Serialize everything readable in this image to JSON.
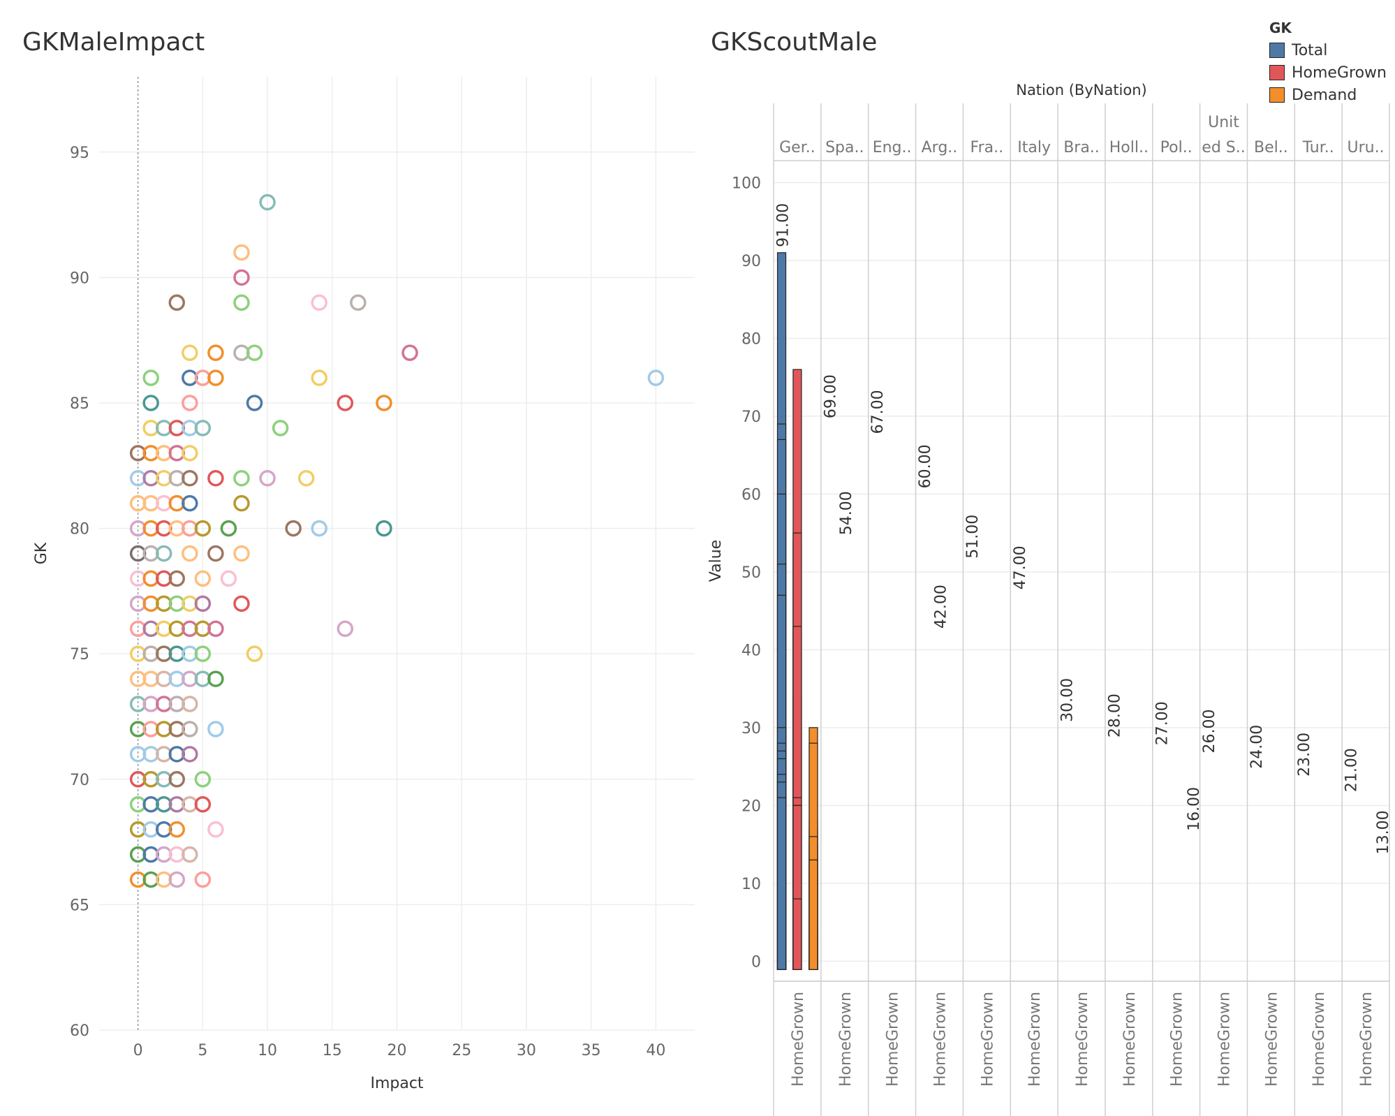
{
  "chart_data": [
    {
      "type": "scatter",
      "title": "GKMaleImpact",
      "xlabel": "Impact",
      "ylabel": "GK",
      "xlim": [
        -3,
        43
      ],
      "ylim": [
        60,
        98
      ],
      "x_ticks": [
        "0",
        "5",
        "10",
        "15",
        "20",
        "25",
        "30",
        "35",
        "40"
      ],
      "y_ticks": [
        "60",
        "65",
        "70",
        "75",
        "80",
        "85",
        "90",
        "95"
      ],
      "reference_line_x": 0,
      "marker": "hollow-circle",
      "palette": [
        "#4e79a7",
        "#a0cbe8",
        "#f28e2b",
        "#ffbe7d",
        "#59a14f",
        "#8cd17d",
        "#b6992d",
        "#f1ce63",
        "#499894",
        "#86bcb6",
        "#e15759",
        "#ff9d9a",
        "#79706e",
        "#bab0ac",
        "#d37295",
        "#fabfd2",
        "#b07aa1",
        "#d4a6c8",
        "#9d7660",
        "#d7b5a6"
      ],
      "points": [
        {
          "x": 10,
          "y": 93,
          "c": 9
        },
        {
          "x": 8,
          "y": 91,
          "c": 3
        },
        {
          "x": 8,
          "y": 90,
          "c": 14
        },
        {
          "x": 3,
          "y": 89,
          "c": 18
        },
        {
          "x": 8,
          "y": 89,
          "c": 5
        },
        {
          "x": 14,
          "y": 89,
          "c": 15
        },
        {
          "x": 17,
          "y": 89,
          "c": 13
        },
        {
          "x": 4,
          "y": 87,
          "c": 7
        },
        {
          "x": 6,
          "y": 87,
          "c": 2
        },
        {
          "x": 8,
          "y": 87,
          "c": 13
        },
        {
          "x": 9,
          "y": 87,
          "c": 5
        },
        {
          "x": 21,
          "y": 87,
          "c": 14
        },
        {
          "x": 1,
          "y": 86,
          "c": 5
        },
        {
          "x": 4,
          "y": 86,
          "c": 0
        },
        {
          "x": 5,
          "y": 86,
          "c": 11
        },
        {
          "x": 6,
          "y": 86,
          "c": 2
        },
        {
          "x": 14,
          "y": 86,
          "c": 7
        },
        {
          "x": 40,
          "y": 86,
          "c": 1
        },
        {
          "x": 1,
          "y": 85,
          "c": 8
        },
        {
          "x": 4,
          "y": 85,
          "c": 11
        },
        {
          "x": 9,
          "y": 85,
          "c": 0
        },
        {
          "x": 16,
          "y": 85,
          "c": 10
        },
        {
          "x": 19,
          "y": 85,
          "c": 2
        },
        {
          "x": 1,
          "y": 84,
          "c": 7
        },
        {
          "x": 2,
          "y": 84,
          "c": 9
        },
        {
          "x": 3,
          "y": 84,
          "c": 10
        },
        {
          "x": 4,
          "y": 84,
          "c": 1
        },
        {
          "x": 5,
          "y": 84,
          "c": 9
        },
        {
          "x": 11,
          "y": 84,
          "c": 5
        },
        {
          "x": 0,
          "y": 83,
          "c": 18
        },
        {
          "x": 1,
          "y": 83,
          "c": 2
        },
        {
          "x": 2,
          "y": 83,
          "c": 3
        },
        {
          "x": 3,
          "y": 83,
          "c": 14
        },
        {
          "x": 4,
          "y": 83,
          "c": 7
        },
        {
          "x": 0,
          "y": 82,
          "c": 1
        },
        {
          "x": 1,
          "y": 82,
          "c": 16
        },
        {
          "x": 2,
          "y": 82,
          "c": 7
        },
        {
          "x": 3,
          "y": 82,
          "c": 13
        },
        {
          "x": 4,
          "y": 82,
          "c": 18
        },
        {
          "x": 6,
          "y": 82,
          "c": 10
        },
        {
          "x": 8,
          "y": 82,
          "c": 5
        },
        {
          "x": 10,
          "y": 82,
          "c": 17
        },
        {
          "x": 13,
          "y": 82,
          "c": 7
        },
        {
          "x": 0,
          "y": 81,
          "c": 3
        },
        {
          "x": 1,
          "y": 81,
          "c": 3
        },
        {
          "x": 2,
          "y": 81,
          "c": 15
        },
        {
          "x": 3,
          "y": 81,
          "c": 2
        },
        {
          "x": 4,
          "y": 81,
          "c": 0
        },
        {
          "x": 8,
          "y": 81,
          "c": 6
        },
        {
          "x": 0,
          "y": 80,
          "c": 17
        },
        {
          "x": 1,
          "y": 80,
          "c": 2
        },
        {
          "x": 2,
          "y": 80,
          "c": 10
        },
        {
          "x": 3,
          "y": 80,
          "c": 3
        },
        {
          "x": 4,
          "y": 80,
          "c": 11
        },
        {
          "x": 5,
          "y": 80,
          "c": 6
        },
        {
          "x": 7,
          "y": 80,
          "c": 4
        },
        {
          "x": 12,
          "y": 80,
          "c": 18
        },
        {
          "x": 14,
          "y": 80,
          "c": 1
        },
        {
          "x": 19,
          "y": 80,
          "c": 8
        },
        {
          "x": 0,
          "y": 79,
          "c": 12
        },
        {
          "x": 1,
          "y": 79,
          "c": 13
        },
        {
          "x": 2,
          "y": 79,
          "c": 9
        },
        {
          "x": 4,
          "y": 79,
          "c": 3
        },
        {
          "x": 6,
          "y": 79,
          "c": 18
        },
        {
          "x": 8,
          "y": 79,
          "c": 3
        },
        {
          "x": 0,
          "y": 78,
          "c": 15
        },
        {
          "x": 1,
          "y": 78,
          "c": 2
        },
        {
          "x": 2,
          "y": 78,
          "c": 10
        },
        {
          "x": 3,
          "y": 78,
          "c": 18
        },
        {
          "x": 5,
          "y": 78,
          "c": 3
        },
        {
          "x": 7,
          "y": 78,
          "c": 15
        },
        {
          "x": 0,
          "y": 77,
          "c": 17
        },
        {
          "x": 1,
          "y": 77,
          "c": 2
        },
        {
          "x": 2,
          "y": 77,
          "c": 6
        },
        {
          "x": 3,
          "y": 77,
          "c": 5
        },
        {
          "x": 4,
          "y": 77,
          "c": 7
        },
        {
          "x": 5,
          "y": 77,
          "c": 16
        },
        {
          "x": 8,
          "y": 77,
          "c": 10
        },
        {
          "x": 0,
          "y": 76,
          "c": 11
        },
        {
          "x": 1,
          "y": 76,
          "c": 16
        },
        {
          "x": 2,
          "y": 76,
          "c": 7
        },
        {
          "x": 3,
          "y": 76,
          "c": 6
        },
        {
          "x": 4,
          "y": 76,
          "c": 14
        },
        {
          "x": 5,
          "y": 76,
          "c": 6
        },
        {
          "x": 6,
          "y": 76,
          "c": 14
        },
        {
          "x": 16,
          "y": 76,
          "c": 17
        },
        {
          "x": 0,
          "y": 75,
          "c": 7
        },
        {
          "x": 1,
          "y": 75,
          "c": 13
        },
        {
          "x": 2,
          "y": 75,
          "c": 18
        },
        {
          "x": 3,
          "y": 75,
          "c": 8
        },
        {
          "x": 4,
          "y": 75,
          "c": 1
        },
        {
          "x": 5,
          "y": 75,
          "c": 5
        },
        {
          "x": 9,
          "y": 75,
          "c": 7
        },
        {
          "x": 0,
          "y": 74,
          "c": 3
        },
        {
          "x": 1,
          "y": 74,
          "c": 3
        },
        {
          "x": 2,
          "y": 74,
          "c": 19
        },
        {
          "x": 3,
          "y": 74,
          "c": 1
        },
        {
          "x": 4,
          "y": 74,
          "c": 17
        },
        {
          "x": 5,
          "y": 74,
          "c": 9
        },
        {
          "x": 6,
          "y": 74,
          "c": 4
        },
        {
          "x": 0,
          "y": 73,
          "c": 9
        },
        {
          "x": 1,
          "y": 73,
          "c": 17
        },
        {
          "x": 2,
          "y": 73,
          "c": 14
        },
        {
          "x": 3,
          "y": 73,
          "c": 13
        },
        {
          "x": 4,
          "y": 73,
          "c": 19
        },
        {
          "x": 0,
          "y": 72,
          "c": 4
        },
        {
          "x": 1,
          "y": 72,
          "c": 11
        },
        {
          "x": 2,
          "y": 72,
          "c": 6
        },
        {
          "x": 3,
          "y": 72,
          "c": 18
        },
        {
          "x": 4,
          "y": 72,
          "c": 13
        },
        {
          "x": 6,
          "y": 72,
          "c": 1
        },
        {
          "x": 0,
          "y": 71,
          "c": 1
        },
        {
          "x": 1,
          "y": 71,
          "c": 1
        },
        {
          "x": 2,
          "y": 71,
          "c": 19
        },
        {
          "x": 3,
          "y": 71,
          "c": 0
        },
        {
          "x": 4,
          "y": 71,
          "c": 16
        },
        {
          "x": 0,
          "y": 70,
          "c": 10
        },
        {
          "x": 1,
          "y": 70,
          "c": 6
        },
        {
          "x": 2,
          "y": 70,
          "c": 9
        },
        {
          "x": 3,
          "y": 70,
          "c": 18
        },
        {
          "x": 5,
          "y": 70,
          "c": 5
        },
        {
          "x": 0,
          "y": 69,
          "c": 5
        },
        {
          "x": 1,
          "y": 69,
          "c": 0
        },
        {
          "x": 2,
          "y": 69,
          "c": 8
        },
        {
          "x": 3,
          "y": 69,
          "c": 16
        },
        {
          "x": 4,
          "y": 69,
          "c": 19
        },
        {
          "x": 5,
          "y": 69,
          "c": 10
        },
        {
          "x": 0,
          "y": 68,
          "c": 6
        },
        {
          "x": 1,
          "y": 68,
          "c": 1
        },
        {
          "x": 2,
          "y": 68,
          "c": 0
        },
        {
          "x": 3,
          "y": 68,
          "c": 2
        },
        {
          "x": 6,
          "y": 68,
          "c": 15
        },
        {
          "x": 0,
          "y": 67,
          "c": 4
        },
        {
          "x": 1,
          "y": 67,
          "c": 0
        },
        {
          "x": 2,
          "y": 67,
          "c": 17
        },
        {
          "x": 3,
          "y": 67,
          "c": 15
        },
        {
          "x": 4,
          "y": 67,
          "c": 19
        },
        {
          "x": 0,
          "y": 66,
          "c": 2
        },
        {
          "x": 1,
          "y": 66,
          "c": 4
        },
        {
          "x": 2,
          "y": 66,
          "c": 3
        },
        {
          "x": 3,
          "y": 66,
          "c": 17
        },
        {
          "x": 5,
          "y": 66,
          "c": 11
        }
      ]
    },
    {
      "type": "bar",
      "title": "GKScoutMale",
      "column_header": "Nation (ByNation)",
      "categories": [
        "Ger..",
        "Spa..",
        "Eng..",
        "Arg..",
        "Fra..",
        "Italy",
        "Bra..",
        "Holl..",
        "Pol..",
        "Unit ed S..",
        "Bel..",
        "Tur..",
        "Uru.."
      ],
      "x_sublabel": "HomeGrown",
      "ylabel": "Value",
      "ylim": [
        -1.5,
        110
      ],
      "y_ticks": [
        "0",
        "10",
        "20",
        "30",
        "40",
        "50",
        "60",
        "70",
        "80",
        "90",
        "100"
      ],
      "legend_title": "GK",
      "series": [
        {
          "name": "Total",
          "color": "#4e79a7",
          "values": [
            91,
            69,
            67,
            60,
            51,
            47,
            30,
            28,
            27,
            26,
            24,
            23,
            21
          ]
        },
        {
          "name": "HomeGrown",
          "color": "#e15759",
          "values": [
            76,
            54,
            55,
            42,
            34,
            43,
            0,
            0,
            11,
            21,
            20,
            20,
            8
          ]
        },
        {
          "name": "Demand",
          "color": "#f28e2b",
          "values": [
            15,
            15,
            12,
            18,
            17,
            4,
            30,
            28,
            16,
            5,
            4,
            3,
            13
          ]
        }
      ],
      "data_labels": [
        {
          "category": "Ger..",
          "series": "Total",
          "text": "91.00"
        },
        {
          "category": "Spa..",
          "series": "Total",
          "text": "69.00"
        },
        {
          "category": "Spa..",
          "series": "HomeGrown",
          "text": "54.00"
        },
        {
          "category": "Eng..",
          "series": "Total",
          "text": "67.00"
        },
        {
          "category": "Arg..",
          "series": "Total",
          "text": "60.00"
        },
        {
          "category": "Arg..",
          "series": "HomeGrown",
          "text": "42.00"
        },
        {
          "category": "Fra..",
          "series": "Total",
          "text": "51.00"
        },
        {
          "category": "Italy",
          "series": "Total",
          "text": "47.00"
        },
        {
          "category": "Bra..",
          "series": "Total",
          "text": "30.00"
        },
        {
          "category": "Holl..",
          "series": "Total",
          "text": "28.00"
        },
        {
          "category": "Pol..",
          "series": "Total",
          "text": "27.00"
        },
        {
          "category": "Pol..",
          "series": "Demand",
          "text": "16.00"
        },
        {
          "category": "Unit ed S..",
          "series": "Total",
          "text": "26.00"
        },
        {
          "category": "Bel..",
          "series": "Total",
          "text": "24.00"
        },
        {
          "category": "Tur..",
          "series": "Total",
          "text": "23.00"
        },
        {
          "category": "Uru..",
          "series": "Total",
          "text": "21.00"
        },
        {
          "category": "Uru..",
          "series": "Demand",
          "text": "13.00"
        }
      ]
    }
  ]
}
